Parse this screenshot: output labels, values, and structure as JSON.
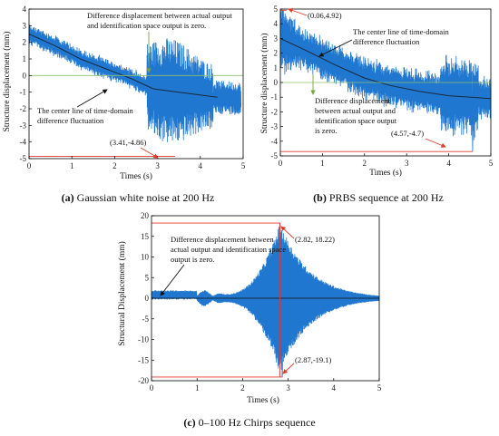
{
  "chart_data": [
    {
      "id": "a",
      "type": "line",
      "caption_letter": "(a)",
      "caption_text": " Gaussian white noise at 200 Hz",
      "xlabel": "Times (s)",
      "ylabel": "Structure displacement (mm)",
      "xlim": [
        0,
        5
      ],
      "ylim": [
        -5,
        4
      ],
      "xticks": [
        "0",
        "1",
        "2",
        "3",
        "4",
        "5"
      ],
      "yticks": [
        "-5",
        "-4",
        "-3",
        "-2",
        "-1",
        "0",
        "1",
        "2",
        "3",
        "4"
      ],
      "color": "#1f77d0",
      "center_line": [
        [
          0,
          2.5
        ],
        [
          0.6,
          1.8
        ],
        [
          1.2,
          1.0
        ],
        [
          1.8,
          0.4
        ],
        [
          2.4,
          -0.2
        ],
        [
          2.9,
          -0.8
        ],
        [
          3.5,
          -1.0
        ],
        [
          4.4,
          -1.3
        ]
      ],
      "annotations": [
        {
          "name": "diff-zero-note",
          "lines": [
            "Difference displacement between actual output",
            "and identification space output is zero."
          ]
        },
        {
          "name": "center-line-note",
          "lines": [
            "The center line of time-domain",
            "difference fluctuation"
          ]
        },
        {
          "name": "min-point-label",
          "text": "(3.41,-4.86)",
          "point": [
            3.41,
            -4.86
          ]
        }
      ]
    },
    {
      "id": "b",
      "type": "line",
      "caption_letter": "(b)",
      "caption_text": " PRBS sequence at 200 Hz",
      "xlabel": "Times (s)",
      "ylabel": "Structure displacement (mm)",
      "xlim": [
        0,
        5
      ],
      "ylim": [
        -5,
        5
      ],
      "xticks": [
        "0",
        "1",
        "2",
        "3",
        "4",
        "5"
      ],
      "yticks": [
        "-5",
        "-4",
        "-3",
        "-2",
        "-1",
        "0",
        "1",
        "2",
        "3",
        "4",
        "5"
      ],
      "color": "#1f77d0",
      "center_line": [
        [
          0,
          3.0
        ],
        [
          0.6,
          2.2
        ],
        [
          1.3,
          1.2
        ],
        [
          2.0,
          0.3
        ],
        [
          2.6,
          -0.2
        ],
        [
          3.3,
          -0.6
        ],
        [
          4.0,
          -0.9
        ],
        [
          5.0,
          -1.1
        ]
      ],
      "annotations": [
        {
          "name": "max-point-label",
          "text": "(0.06,4.92)",
          "point": [
            0.06,
            4.92
          ]
        },
        {
          "name": "center-line-note",
          "lines": [
            "The center line of time-domain",
            "difference fluctuation"
          ]
        },
        {
          "name": "diff-zero-note",
          "lines": [
            "Difference displacement",
            "between actual output and",
            "identification space output",
            "is zero."
          ]
        },
        {
          "name": "min-point-label",
          "text": "(4.57,-4.7)",
          "point": [
            4.57,
            -4.7
          ]
        }
      ]
    },
    {
      "id": "c",
      "type": "line",
      "caption_letter": "(c)",
      "caption_text": " 0–100 Hz Chirps sequence",
      "xlabel": "Times (s)",
      "ylabel": "Structural Displacement (mm)",
      "xlim": [
        0,
        5
      ],
      "ylim": [
        -20,
        20
      ],
      "xticks": [
        "0",
        "1",
        "2",
        "3",
        "4",
        "5"
      ],
      "yticks": [
        "-20",
        "-15",
        "-10",
        "-5",
        "0",
        "5",
        "10",
        "15",
        "20"
      ],
      "color": "#1f77d0",
      "annotations": [
        {
          "name": "diff-zero-note",
          "lines": [
            "Difference displacement between",
            "actual output and identification space",
            "output is zero."
          ]
        },
        {
          "name": "max-point-label",
          "text": "(2.82,  18.22)",
          "point": [
            2.82,
            18.22
          ]
        },
        {
          "name": "min-point-label",
          "text": "(2.87,-19.1)",
          "point": [
            2.87,
            -19.1
          ]
        }
      ]
    }
  ]
}
